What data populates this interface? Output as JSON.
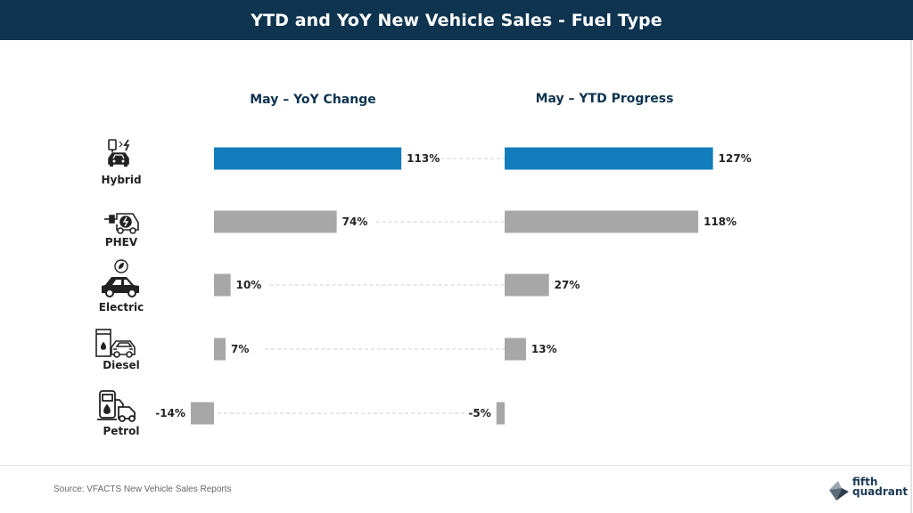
{
  "header": {
    "title": "YTD and YoY New Vehicle Sales - Fuel Type"
  },
  "panels": {
    "left_title": "May – YoY Change",
    "right_title": "May – YTD Progress"
  },
  "chart_data": {
    "type": "bar",
    "orientation": "horizontal",
    "categories": [
      "Hybrid",
      "PHEV",
      "Electric",
      "Diesel",
      "Petrol"
    ],
    "category_icons": [
      "hybrid-car-icon",
      "phev-car-icon",
      "electric-car-icon",
      "diesel-car-icon",
      "petrol-pump-icon"
    ],
    "series": [
      {
        "name": "May – YoY Change",
        "values": [
          113,
          74,
          10,
          7,
          -14
        ],
        "labels": [
          "113%",
          "74%",
          "10%",
          "7%",
          "-14%"
        ]
      },
      {
        "name": "May – YTD Progress",
        "values": [
          127,
          118,
          27,
          13,
          -5
        ],
        "labels": [
          "127%",
          "118%",
          "27%",
          "13%",
          "-5%"
        ]
      }
    ],
    "highlight_category": "Hybrid",
    "colors": {
      "highlight": "#137cbd",
      "default": "#a7a7a7",
      "connector": "#cfcfcf"
    },
    "unit": "%"
  },
  "footer": {
    "source": "Source: VFACTS New Vehicle Sales Reports",
    "logo_line1": "fifth",
    "logo_line2": "quadrant"
  }
}
